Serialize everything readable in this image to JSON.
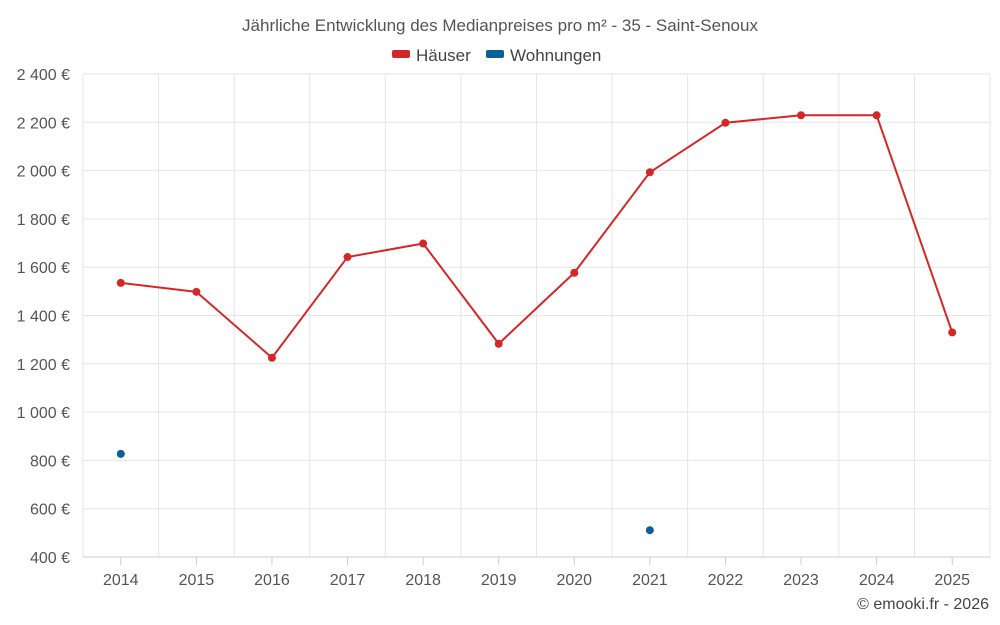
{
  "chart_data": {
    "type": "line",
    "title": "Jährliche Entwicklung des Medianpreises pro m² - 35 - Saint-Senoux",
    "categories": [
      "2014",
      "2015",
      "2016",
      "2017",
      "2018",
      "2019",
      "2020",
      "2021",
      "2022",
      "2023",
      "2024",
      "2025"
    ],
    "y_ticks": [
      400,
      600,
      800,
      1000,
      1200,
      1400,
      1600,
      1800,
      2000,
      2200,
      2400
    ],
    "y_tick_labels": [
      "400 €",
      "600 €",
      "800 €",
      "1 000 €",
      "1 200 €",
      "1 400 €",
      "1 600 €",
      "1 800 €",
      "2 000 €",
      "2 200 €",
      "2 400 €"
    ],
    "ylim": [
      400,
      2400
    ],
    "xlabel": "",
    "ylabel": "",
    "grid": true,
    "legend_position": "top-center",
    "series": [
      {
        "name": "Häuser",
        "color": "#d62728",
        "values": [
          1535,
          1498,
          1225,
          1642,
          1698,
          1283,
          1577,
          1993,
          2198,
          2229,
          2229,
          1330
        ]
      },
      {
        "name": "Wohnungen",
        "color": "#0b5f97",
        "values": [
          827,
          null,
          null,
          null,
          null,
          null,
          null,
          511,
          null,
          null,
          null,
          null
        ]
      }
    ]
  },
  "credit": "© emooki.fr - 2026"
}
